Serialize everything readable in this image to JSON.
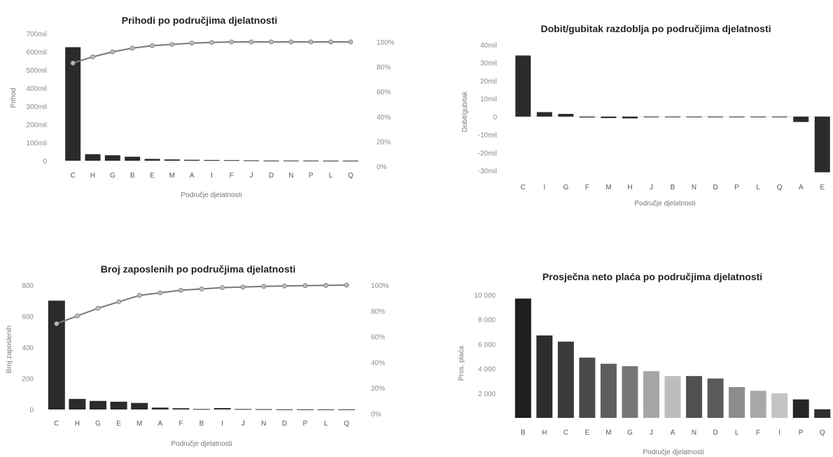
{
  "chart_data": [
    {
      "type": "bar+line",
      "title": "Prihodi po područjima djelatnosti",
      "xlabel": "Područje djelatnosti",
      "ylabel": "Prihod",
      "ylim": [
        0,
        700
      ],
      "y_ticks": [
        "0",
        "100mil",
        "200mil",
        "300mil",
        "400mil",
        "500mil",
        "600mil",
        "700mil"
      ],
      "y2_ticks": [
        "0%",
        "20%",
        "40%",
        "60%",
        "80%",
        "100%"
      ],
      "categories": [
        "C",
        "H",
        "G",
        "B",
        "E",
        "M",
        "A",
        "I",
        "F",
        "J",
        "D",
        "N",
        "P",
        "L",
        "Q"
      ],
      "values": [
        625,
        36,
        30,
        22,
        10,
        7,
        5,
        4,
        3,
        2,
        1,
        1,
        1,
        0.5,
        0.5
      ],
      "cumulative_pct": [
        83,
        88,
        92,
        95,
        97,
        98,
        99,
        99.6,
        100,
        100,
        100,
        100,
        100,
        100,
        100
      ],
      "colors": {
        "bar": "#2b2b2b",
        "line": "#777777"
      }
    },
    {
      "type": "bar",
      "title": "Dobit/gubitak razdoblja po područjima djelatnosti",
      "xlabel": "Područje djelatnosti",
      "ylabel": "Dobit/gubitak",
      "ylim": [
        -30,
        40
      ],
      "y_ticks": [
        "-30mil",
        "-20mil",
        "-10mil",
        "0",
        "10mil",
        "20mil",
        "30mil",
        "40mil"
      ],
      "categories": [
        "C",
        "I",
        "G",
        "F",
        "M",
        "H",
        "J",
        "B",
        "N",
        "D",
        "P",
        "L",
        "Q",
        "A",
        "E"
      ],
      "values": [
        34,
        2.5,
        1.5,
        -0.5,
        -0.8,
        -1,
        -0.1,
        0,
        0,
        0,
        0,
        0,
        0,
        -3,
        -31
      ],
      "colors": {
        "bar": "#2b2b2b"
      }
    },
    {
      "type": "bar+line",
      "title": "Broj zaposlenih po područjima djelatnosti",
      "xlabel": "Područje djelatnosti",
      "ylabel": "Broj zaposlenih",
      "ylim": [
        0,
        800
      ],
      "y_ticks": [
        "0",
        "200",
        "400",
        "600",
        "800"
      ],
      "y2_ticks": [
        "0%",
        "20%",
        "40%",
        "60%",
        "80%",
        "100%"
      ],
      "categories": [
        "C",
        "H",
        "G",
        "E",
        "M",
        "A",
        "F",
        "B",
        "I",
        "J",
        "N",
        "D",
        "P",
        "L",
        "Q"
      ],
      "values": [
        700,
        68,
        55,
        50,
        42,
        12,
        8,
        3,
        9,
        3,
        2,
        1,
        1,
        1,
        1
      ],
      "cumulative_pct": [
        70,
        76,
        82,
        87,
        92,
        94,
        96,
        97,
        98,
        98.5,
        99,
        99.3,
        99.6,
        99.8,
        100
      ],
      "colors": {
        "bar": "#2b2b2b",
        "line": "#777777"
      }
    },
    {
      "type": "bar",
      "title": "Prosječna neto plaća po područjima djelatnosti",
      "xlabel": "Područje djelatnosti",
      "ylabel": "Pros. plaća",
      "ylim": [
        0,
        10000
      ],
      "y_ticks": [
        "2 000",
        "4 000",
        "6 000",
        "8 000",
        "10 000"
      ],
      "categories": [
        "B",
        "H",
        "C",
        "E",
        "M",
        "G",
        "J",
        "A",
        "N",
        "D",
        "L",
        "F",
        "I",
        "P",
        "Q"
      ],
      "values": [
        9700,
        6700,
        6200,
        4900,
        4400,
        4200,
        3800,
        3400,
        3400,
        3200,
        2500,
        2200,
        2000,
        1500,
        700
      ],
      "colors": [
        "#1e1e1e",
        "#2d2d2d",
        "#3a3a3a",
        "#4a4a4a",
        "#5e5e5e",
        "#767676",
        "#a6a6a6",
        "#bdbdbd",
        "#505050",
        "#5a5a5a",
        "#8c8c8c",
        "#a8a8a8",
        "#c4c4c4",
        "#262626",
        "#303030"
      ]
    }
  ]
}
